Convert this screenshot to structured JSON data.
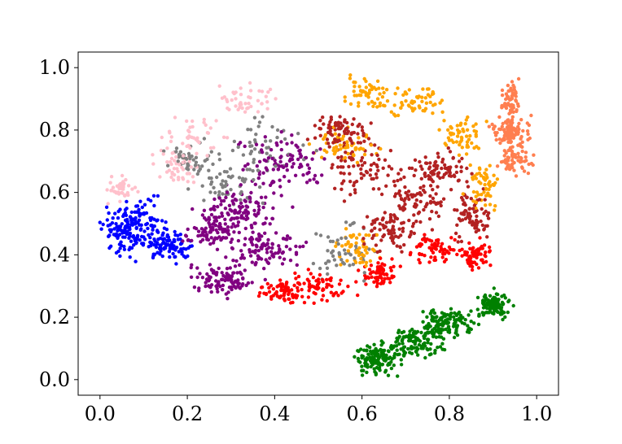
{
  "chart_data": {
    "type": "scatter",
    "title": "",
    "xlabel": "",
    "ylabel": "",
    "xlim": [
      -0.05,
      1.05
    ],
    "ylim": [
      -0.05,
      1.05
    ],
    "xticks": [
      "0.0",
      "0.2",
      "0.4",
      "0.6",
      "0.8",
      "1.0"
    ],
    "yticks": [
      "0.0",
      "0.2",
      "0.4",
      "0.6",
      "0.8",
      "1.0"
    ],
    "grid": false,
    "legend": "none",
    "clusters": [
      {
        "color": "#0000ff",
        "n": 260,
        "blobs": [
          [
            0.05,
            0.47,
            0.04,
            0.06
          ],
          [
            0.1,
            0.5,
            0.05,
            0.06
          ],
          [
            0.16,
            0.43,
            0.04,
            0.04
          ]
        ]
      },
      {
        "color": "#008000",
        "n": 480,
        "blobs": [
          [
            0.63,
            0.06,
            0.04,
            0.04
          ],
          [
            0.72,
            0.12,
            0.05,
            0.04
          ],
          [
            0.8,
            0.18,
            0.05,
            0.04
          ],
          [
            0.9,
            0.24,
            0.03,
            0.03
          ]
        ]
      },
      {
        "color": "#ffc0cb",
        "n": 170,
        "blobs": [
          [
            0.05,
            0.61,
            0.03,
            0.03
          ],
          [
            0.22,
            0.78,
            0.06,
            0.05
          ],
          [
            0.34,
            0.9,
            0.05,
            0.04
          ],
          [
            0.18,
            0.68,
            0.04,
            0.04
          ]
        ]
      },
      {
        "color": "#808080",
        "n": 200,
        "blobs": [
          [
            0.2,
            0.7,
            0.05,
            0.04
          ],
          [
            0.36,
            0.75,
            0.08,
            0.08
          ],
          [
            0.3,
            0.62,
            0.06,
            0.05
          ],
          [
            0.55,
            0.42,
            0.06,
            0.08
          ]
        ]
      },
      {
        "color": "#800080",
        "n": 480,
        "blobs": [
          [
            0.28,
            0.32,
            0.06,
            0.04
          ],
          [
            0.38,
            0.42,
            0.07,
            0.05
          ],
          [
            0.33,
            0.55,
            0.07,
            0.06
          ],
          [
            0.42,
            0.7,
            0.08,
            0.07
          ],
          [
            0.26,
            0.48,
            0.05,
            0.05
          ]
        ]
      },
      {
        "color": "#ff0000",
        "n": 320,
        "blobs": [
          [
            0.5,
            0.3,
            0.05,
            0.04
          ],
          [
            0.42,
            0.28,
            0.04,
            0.03
          ],
          [
            0.64,
            0.34,
            0.03,
            0.03
          ],
          [
            0.77,
            0.42,
            0.05,
            0.04
          ],
          [
            0.86,
            0.4,
            0.03,
            0.04
          ]
        ]
      },
      {
        "color": "#b22222",
        "n": 460,
        "blobs": [
          [
            0.6,
            0.68,
            0.06,
            0.07
          ],
          [
            0.73,
            0.58,
            0.06,
            0.06
          ],
          [
            0.67,
            0.48,
            0.05,
            0.05
          ],
          [
            0.78,
            0.68,
            0.05,
            0.05
          ],
          [
            0.85,
            0.52,
            0.04,
            0.06
          ],
          [
            0.55,
            0.8,
            0.05,
            0.04
          ]
        ]
      },
      {
        "color": "#ffa500",
        "n": 330,
        "blobs": [
          [
            0.61,
            0.92,
            0.04,
            0.04
          ],
          [
            0.72,
            0.89,
            0.05,
            0.04
          ],
          [
            0.83,
            0.78,
            0.04,
            0.05
          ],
          [
            0.88,
            0.63,
            0.03,
            0.06
          ],
          [
            0.56,
            0.75,
            0.05,
            0.04
          ],
          [
            0.59,
            0.42,
            0.04,
            0.05
          ]
        ]
      },
      {
        "color": "#ff7f50",
        "n": 230,
        "blobs": [
          [
            0.94,
            0.9,
            0.02,
            0.05
          ],
          [
            0.95,
            0.78,
            0.03,
            0.05
          ],
          [
            0.95,
            0.7,
            0.03,
            0.03
          ],
          [
            0.93,
            0.8,
            0.03,
            0.03
          ]
        ]
      }
    ]
  }
}
